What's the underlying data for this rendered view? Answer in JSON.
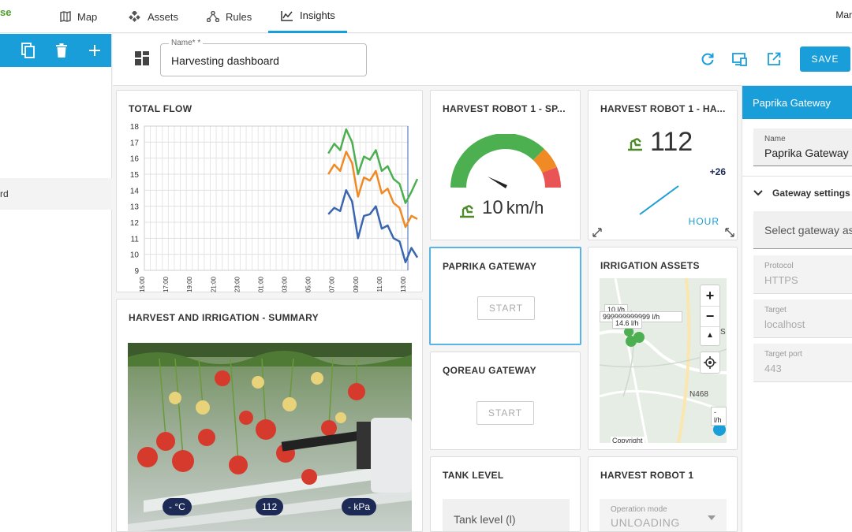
{
  "nav": {
    "brand": "se",
    "items": [
      {
        "label": "Map",
        "icon": "map-icon"
      },
      {
        "label": "Assets",
        "icon": "assets-icon"
      },
      {
        "label": "Rules",
        "icon": "rules-icon"
      },
      {
        "label": "Insights",
        "icon": "insights-icon",
        "active": true
      }
    ],
    "user": "Mar"
  },
  "left": {
    "item_label": "rd"
  },
  "header": {
    "name_label": "Name* *",
    "name_value": "Harvesting dashboard",
    "save_label": "SAVE"
  },
  "cards": {
    "total_flow": {
      "title": "TOTAL FLOW"
    },
    "speed": {
      "title": "HARVEST ROBOT 1 - SP...",
      "value": "10",
      "unit": "km/h"
    },
    "harvested": {
      "title": "HARVEST ROBOT 1 - HA...",
      "value": "112",
      "delta": "+26",
      "period": "HOUR"
    },
    "paprika": {
      "title": "PAPRIKA GATEWAY",
      "button": "START"
    },
    "qoreau": {
      "title": "QOREAU GATEWAY",
      "button": "START"
    },
    "irrigation": {
      "title": "IRRIGATION ASSETS",
      "labels": [
        "10 l/h",
        "999999999999 l/h",
        "14.6 l/h",
        "- l/h"
      ],
      "place": "N468",
      "copyright": "Copyright",
      "edge_text": "S"
    },
    "summary": {
      "title": "HARVEST AND IRRIGATION - SUMMARY",
      "badges": [
        "- °C",
        "112",
        "- kPa"
      ]
    },
    "tank": {
      "title": "TANK LEVEL",
      "field": "Tank level (l)"
    },
    "robot": {
      "title": "HARVEST ROBOT 1",
      "field_label": "Operation mode",
      "field_value": "UNLOADING"
    }
  },
  "right": {
    "header": "Paprika Gateway",
    "name_label": "Name",
    "name_value": "Paprika Gateway",
    "section": "Gateway settings",
    "select_placeholder": "Select gateway as",
    "fields": [
      {
        "label": "Protocol",
        "value": "HTTPS"
      },
      {
        "label": "Target",
        "value": "localhost"
      },
      {
        "label": "Target port",
        "value": "443"
      }
    ]
  },
  "colors": {
    "accent": "#1a9ed9",
    "green": "#4caf50",
    "orange": "#ef8a24",
    "blue": "#3a66b0",
    "red": "#e95454"
  },
  "chart_data": {
    "type": "line",
    "title": "TOTAL FLOW",
    "ylim": [
      9,
      18
    ],
    "yticks": [
      9,
      10,
      11,
      12,
      13,
      14,
      15,
      16,
      17,
      18
    ],
    "x_ticks": [
      "15:00",
      "17:00",
      "19:00",
      "21:00",
      "23:00",
      "01:00",
      "03:00",
      "05:00",
      "07:00",
      "09:00",
      "11:00",
      "13:00"
    ],
    "x": [
      6.5,
      7,
      7.5,
      8,
      8.5,
      9,
      9.5,
      10,
      10.5,
      11,
      11.5,
      12,
      12.5,
      13,
      13.5,
      14
    ],
    "series": [
      {
        "color": "#4caf50",
        "values": [
          16.3,
          16.9,
          16.5,
          17.8,
          17.0,
          15.0,
          16.1,
          15.9,
          16.5,
          15.2,
          15.5,
          14.7,
          14.4,
          13.2,
          13.9,
          14.7
        ]
      },
      {
        "color": "#ef8a24",
        "values": [
          15.0,
          15.6,
          15.2,
          16.4,
          15.7,
          13.6,
          14.8,
          14.6,
          15.2,
          13.8,
          14.1,
          13.2,
          12.9,
          11.7,
          12.4,
          12.2
        ]
      },
      {
        "color": "#3a66b0",
        "values": [
          12.5,
          12.9,
          12.7,
          14.0,
          13.3,
          11.0,
          12.4,
          12.5,
          13.0,
          11.6,
          11.8,
          11.0,
          10.8,
          9.5,
          10.4,
          9.8
        ]
      }
    ],
    "grid": true
  }
}
